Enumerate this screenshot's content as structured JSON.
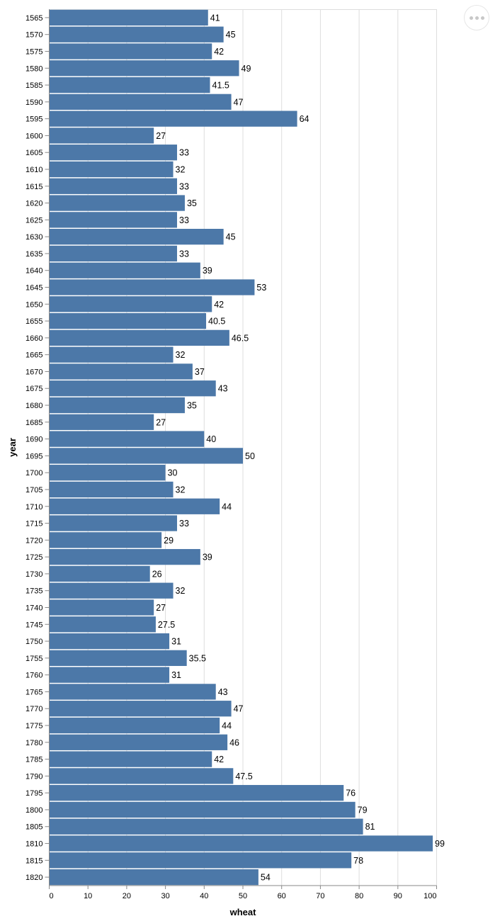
{
  "chart_data": {
    "type": "bar",
    "orientation": "horizontal",
    "title": "",
    "xlabel": "wheat",
    "ylabel": "year",
    "xlim": [
      0,
      100
    ],
    "x_ticks": [
      0,
      10,
      20,
      30,
      40,
      50,
      60,
      70,
      80,
      90,
      100
    ],
    "grid": true,
    "bar_color": "#4c78a8",
    "categories": [
      "1565",
      "1570",
      "1575",
      "1580",
      "1585",
      "1590",
      "1595",
      "1600",
      "1605",
      "1610",
      "1615",
      "1620",
      "1625",
      "1630",
      "1635",
      "1640",
      "1645",
      "1650",
      "1655",
      "1660",
      "1665",
      "1670",
      "1675",
      "1680",
      "1685",
      "1690",
      "1695",
      "1700",
      "1705",
      "1710",
      "1715",
      "1720",
      "1725",
      "1730",
      "1735",
      "1740",
      "1745",
      "1750",
      "1755",
      "1760",
      "1765",
      "1770",
      "1775",
      "1780",
      "1785",
      "1790",
      "1795",
      "1800",
      "1805",
      "1810",
      "1815",
      "1820"
    ],
    "values": [
      41,
      45,
      42,
      49,
      41.5,
      47,
      64,
      27,
      33,
      32,
      33,
      35,
      33,
      45,
      33,
      39,
      53,
      42,
      40.5,
      46.5,
      32,
      37,
      43,
      35,
      27,
      40,
      50,
      30,
      32,
      44,
      33,
      29,
      39,
      26,
      32,
      27,
      27.5,
      31,
      35.5,
      31,
      43,
      47,
      44,
      46,
      42,
      47.5,
      76,
      79,
      81,
      99,
      78,
      54
    ],
    "data_labels": [
      "41",
      "45",
      "42",
      "49",
      "41.5",
      "47",
      "64",
      "27",
      "33",
      "32",
      "33",
      "35",
      "33",
      "45",
      "33",
      "39",
      "53",
      "42",
      "40.5",
      "46.5",
      "32",
      "37",
      "43",
      "35",
      "27",
      "40",
      "50",
      "30",
      "32",
      "44",
      "33",
      "29",
      "39",
      "26",
      "32",
      "27",
      "27.5",
      "31",
      "35.5",
      "31",
      "43",
      "47",
      "44",
      "46",
      "42",
      "47.5",
      "76",
      "79",
      "81",
      "99",
      "78",
      "54"
    ]
  },
  "menu": {
    "icon": "ellipsis-icon"
  }
}
